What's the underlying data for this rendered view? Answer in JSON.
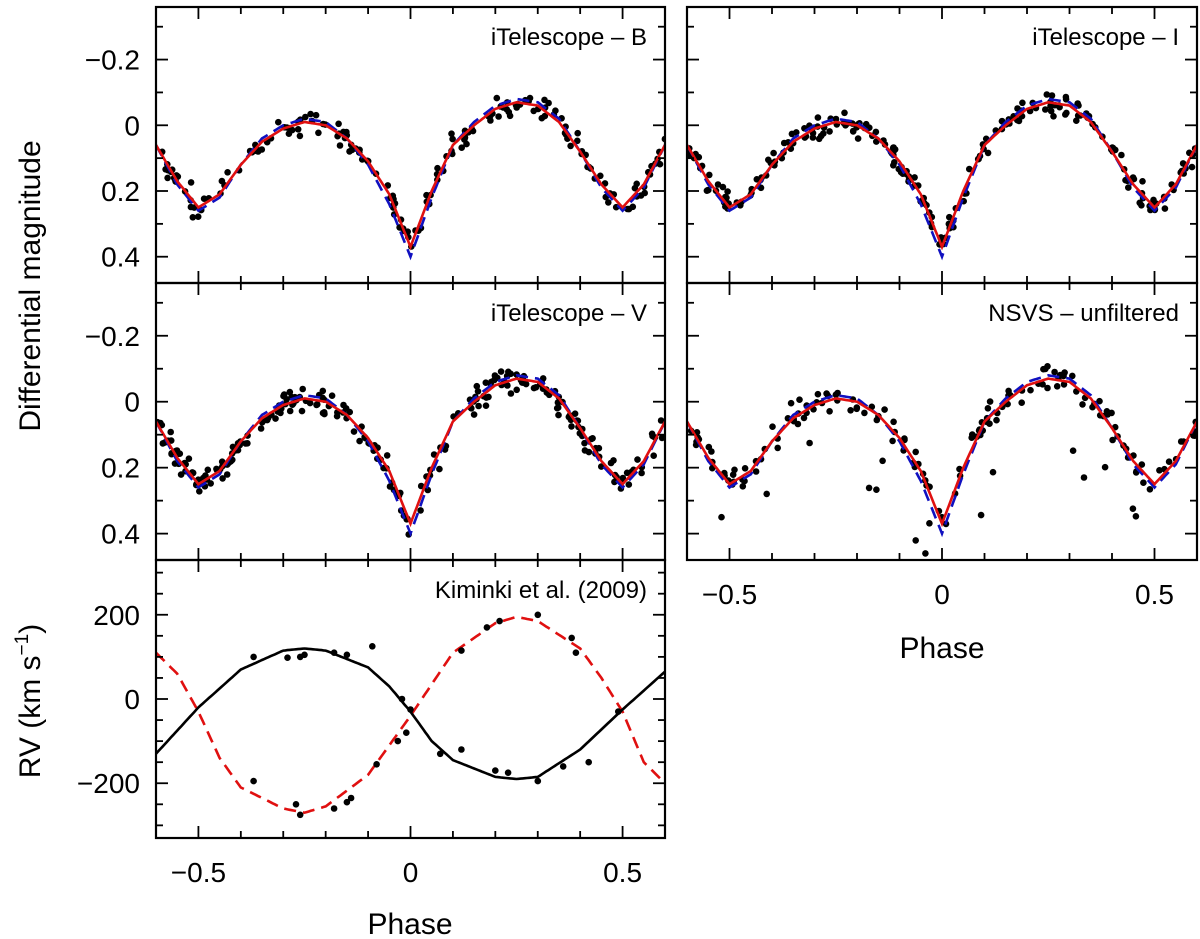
{
  "chart_data": {
    "type": "scatter",
    "x_axis_title": "Phase",
    "y_axis_title_mag": "Differential magnitude",
    "y_axis_title_rv": "RV (km s",
    "y_axis_title_rv_sup": "−1",
    "y_axis_title_rv_close": ")",
    "colors": {
      "points": "#000000",
      "model_solid": "#e01010",
      "model_dashed": "#1010c0",
      "rv_primary": "#000000",
      "rv_secondary": "#e01010",
      "frame": "#000000"
    },
    "xlim": [
      -0.6,
      0.6
    ],
    "x_ticks": [
      -0.5,
      0,
      0.5
    ],
    "x_tick_labels": [
      "−0.5",
      "0",
      "0.5"
    ],
    "mag_ylim": [
      -0.36,
      0.48
    ],
    "mag_ticks": [
      -0.2,
      0,
      0.2,
      0.4
    ],
    "mag_tick_labels": [
      "−0.2",
      "0",
      "0.2",
      "0.4"
    ],
    "rv_ylim": [
      -330,
      330
    ],
    "rv_ticks": [
      -200,
      0,
      200
    ],
    "rv_tick_labels": [
      "−200",
      "0",
      "200"
    ],
    "mag_model": {
      "phase": [
        -0.6,
        -0.55,
        -0.5,
        -0.45,
        -0.4,
        -0.35,
        -0.3,
        -0.25,
        -0.2,
        -0.15,
        -0.1,
        -0.05,
        0.0,
        0.05,
        0.1,
        0.15,
        0.2,
        0.25,
        0.3,
        0.35,
        0.4,
        0.45,
        0.5,
        0.55,
        0.6
      ],
      "solid": [
        0.06,
        0.17,
        0.25,
        0.21,
        0.12,
        0.05,
        0.01,
        -0.01,
        0.0,
        0.04,
        0.11,
        0.21,
        0.37,
        0.2,
        0.06,
        0.0,
        -0.05,
        -0.07,
        -0.06,
        -0.01,
        0.08,
        0.18,
        0.25,
        0.18,
        0.06
      ],
      "dashed": [
        0.06,
        0.18,
        0.26,
        0.22,
        0.12,
        0.04,
        0.0,
        -0.02,
        -0.01,
        0.04,
        0.12,
        0.24,
        0.4,
        0.22,
        0.06,
        -0.01,
        -0.06,
        -0.08,
        -0.07,
        -0.02,
        0.08,
        0.19,
        0.26,
        0.19,
        0.06
      ]
    },
    "panels": [
      {
        "name": "iTelescope - B",
        "label": "iTelescope – B",
        "seed": 11,
        "n": 180,
        "scatter": 0.018,
        "outliers": 0
      },
      {
        "name": "iTelescope - I",
        "label": "iTelescope – I",
        "seed": 23,
        "n": 220,
        "scatter": 0.018,
        "outliers": 0
      },
      {
        "name": "iTelescope - V",
        "label": "iTelescope – V",
        "seed": 37,
        "n": 240,
        "scatter": 0.02,
        "outliers": 0
      },
      {
        "name": "NSVS - unfiltered",
        "label": "NSVS – unfiltered",
        "seed": 53,
        "n": 150,
        "scatter": 0.022,
        "outliers": 16
      }
    ],
    "rv_panel": {
      "label": "Kiminki et al. (2009)",
      "primary_model": {
        "phase": [
          -0.6,
          -0.5,
          -0.4,
          -0.3,
          -0.25,
          -0.2,
          -0.1,
          -0.05,
          0.0,
          0.05,
          0.1,
          0.2,
          0.25,
          0.3,
          0.4,
          0.5,
          0.6
        ],
        "rv": [
          -130,
          -20,
          70,
          115,
          120,
          115,
          75,
          30,
          -30,
          -100,
          -145,
          -185,
          -190,
          -185,
          -120,
          -25,
          65
        ]
      },
      "secondary_model": {
        "phase": [
          -0.6,
          -0.55,
          -0.5,
          -0.45,
          -0.4,
          -0.3,
          -0.25,
          -0.2,
          -0.1,
          0.0,
          0.1,
          0.2,
          0.25,
          0.3,
          0.4,
          0.45,
          0.5,
          0.55,
          0.6
        ],
        "rv": [
          110,
          60,
          -30,
          -140,
          -210,
          -260,
          -270,
          -255,
          -180,
          -40,
          110,
          180,
          195,
          185,
          120,
          50,
          -30,
          -150,
          -200
        ]
      },
      "points": [
        [
          -0.37,
          100
        ],
        [
          -0.29,
          98
        ],
        [
          -0.26,
          100
        ],
        [
          -0.25,
          105
        ],
        [
          -0.18,
          110
        ],
        [
          -0.15,
          105
        ],
        [
          -0.09,
          125
        ],
        [
          -0.02,
          0
        ],
        [
          -0.01,
          -80
        ],
        [
          -0.03,
          -100
        ],
        [
          0.07,
          -130
        ],
        [
          0.12,
          -120
        ],
        [
          0.2,
          -170
        ],
        [
          0.23,
          -175
        ],
        [
          0.3,
          -195
        ],
        [
          0.36,
          -160
        ],
        [
          0.42,
          -150
        ],
        [
          0.49,
          -30
        ],
        [
          -0.37,
          -195
        ],
        [
          -0.27,
          -250
        ],
        [
          -0.26,
          -275
        ],
        [
          -0.15,
          -245
        ],
        [
          -0.14,
          -235
        ],
        [
          -0.18,
          -260
        ],
        [
          -0.08,
          -155
        ],
        [
          0.0,
          -25
        ],
        [
          0.12,
          115
        ],
        [
          0.18,
          170
        ],
        [
          0.21,
          185
        ],
        [
          0.3,
          200
        ],
        [
          0.38,
          145
        ],
        [
          0.39,
          110
        ]
      ]
    }
  }
}
